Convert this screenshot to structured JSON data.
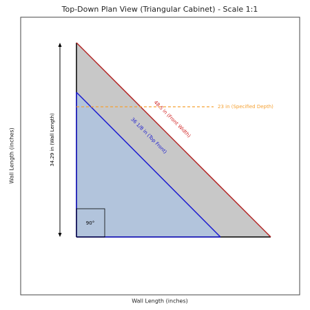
{
  "header": {
    "title": "Top-Down Plan View (Triangular Cabinet) - Scale 1:1"
  },
  "axes": {
    "x_label": "Wall Length (inches)",
    "y_label": "Wall Length (inches)"
  },
  "annotations": {
    "wall_length": "34.29 in (Wall Length)",
    "front_width": "48.5 in (Front Width)",
    "top_front": "36 1/8 in (Top Front)",
    "depth": "23 in (Specified Depth)",
    "right_angle": "90°"
  }
}
